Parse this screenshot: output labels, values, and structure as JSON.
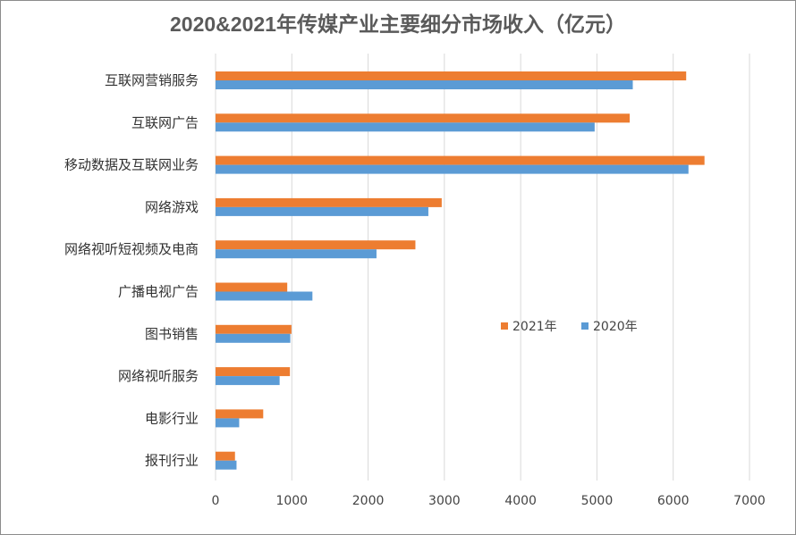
{
  "chart_data": {
    "type": "bar",
    "orientation": "horizontal",
    "title": "2020&2021年传媒产业主要细分市场收入（亿元）",
    "categories": [
      "互联网营销服务",
      "互联网广告",
      "移动数据及互联网业务",
      "网络游戏",
      "网络视听短视频及电商",
      "广播电视广告",
      "图书销售",
      "网络视听服务",
      "电影行业",
      "报刊行业"
    ],
    "series": [
      {
        "name": "2021年",
        "color": "#ed7d31",
        "values": [
          6170,
          5430,
          6410,
          2965,
          2620,
          940,
          995,
          975,
          625,
          255
        ]
      },
      {
        "name": "2020年",
        "color": "#5b9bd5",
        "values": [
          5470,
          4970,
          6200,
          2790,
          2110,
          1270,
          980,
          840,
          310,
          275
        ]
      }
    ],
    "xlim": [
      0,
      7000
    ],
    "xticks": [
      "0",
      "1000",
      "2000",
      "3000",
      "4000",
      "5000",
      "6000",
      "7000"
    ],
    "grid": true,
    "legend_position": "right-middle"
  }
}
